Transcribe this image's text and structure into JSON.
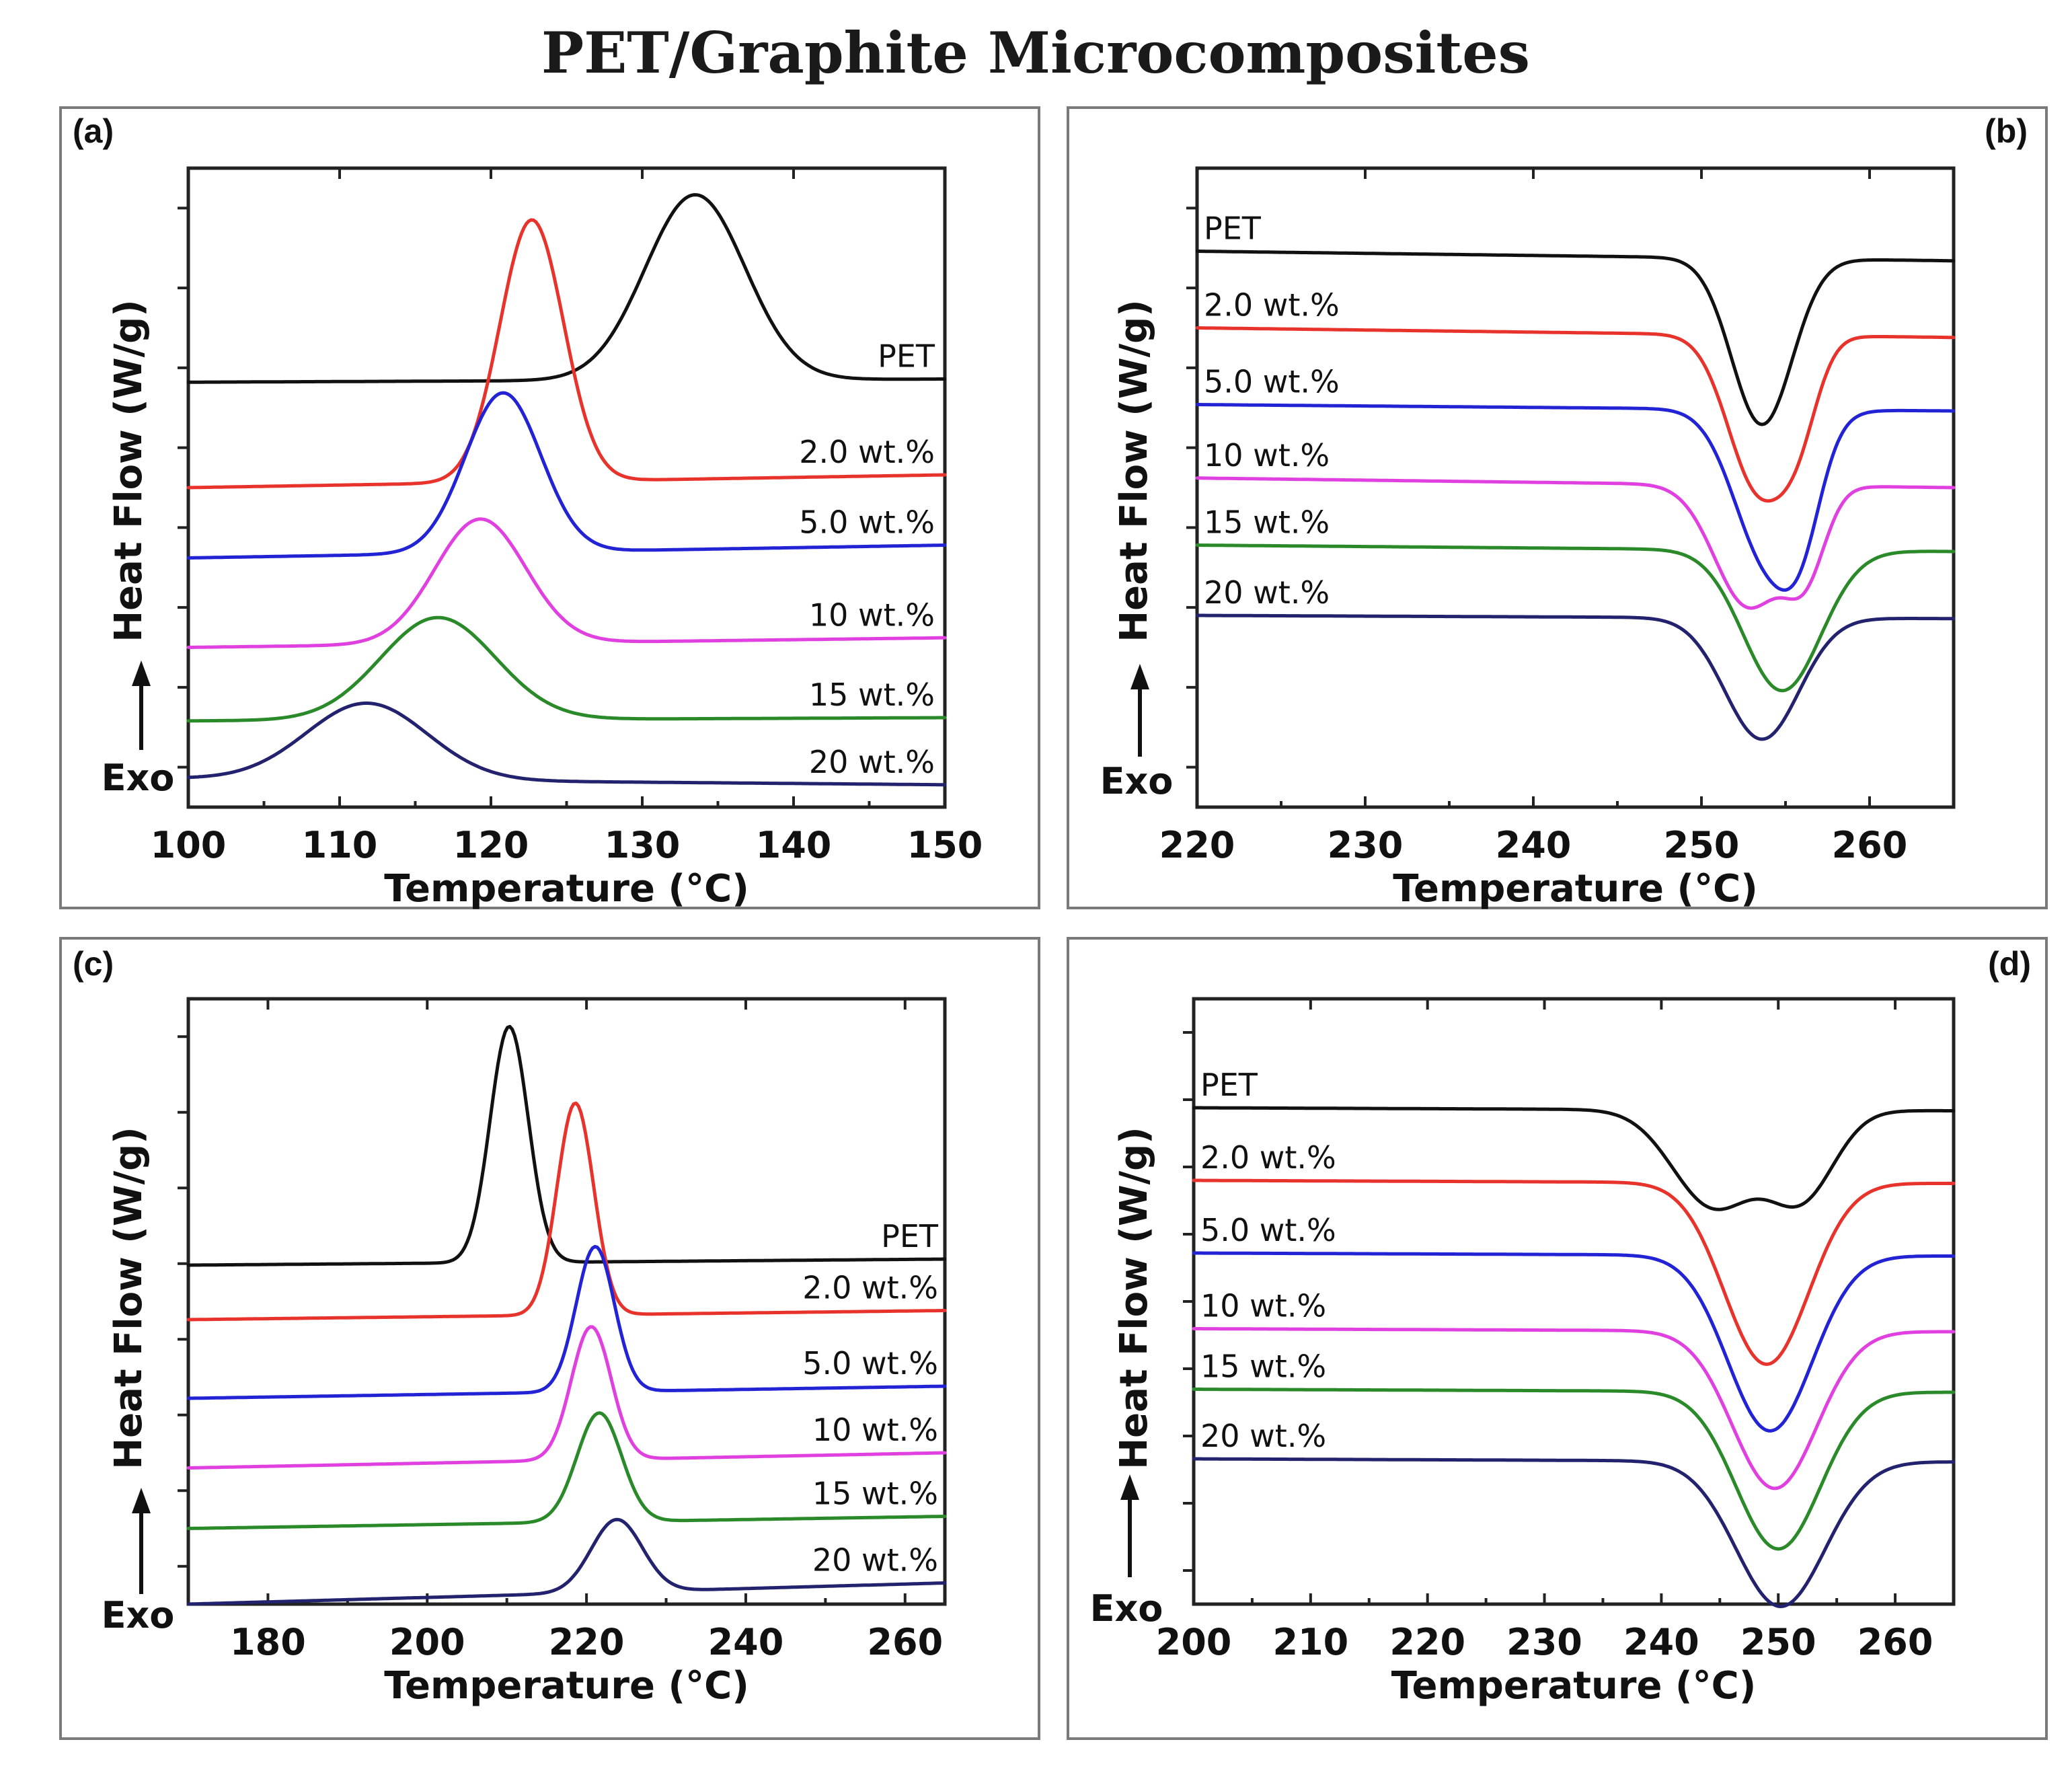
{
  "figure_title": "PET/Graphite Microcomposites",
  "colors": {
    "PET": "#111111",
    "2.0 wt.%": "#e8332c",
    "5.0 wt.%": "#2323d6",
    "10 wt.%": "#e040e0",
    "15 wt.%": "#2a8a2a",
    "20 wt.%": "#22226e"
  },
  "chart_data": [
    {
      "panel": "(a)",
      "type": "line",
      "xlabel": "Temperature (°C)",
      "ylabel": "Heat Flow (W/g)",
      "exo_label": "Exo",
      "xlim": [
        100,
        150
      ],
      "xticks": [
        100,
        110,
        120,
        130,
        140,
        150
      ],
      "ylim": [
        0,
        100
      ],
      "yticks_unlabeled": 8,
      "peak_direction": "up",
      "series": [
        {
          "name": "PET",
          "baseline_start": 66.5,
          "baseline_end": 67.0,
          "peaks": [
            {
              "center": 133.5,
              "height": 29,
              "width": 3.3
            }
          ]
        },
        {
          "name": "2.0 wt.%",
          "baseline_start": 50.0,
          "baseline_end": 52.0,
          "peaks": [
            {
              "center": 122.7,
              "height": 41,
              "width": 2.1
            }
          ]
        },
        {
          "name": "5.0 wt.%",
          "baseline_start": 39.0,
          "baseline_end": 41.0,
          "peaks": [
            {
              "center": 120.8,
              "height": 25,
              "width": 2.5
            }
          ]
        },
        {
          "name": "10 wt.%",
          "baseline_start": 25.0,
          "baseline_end": 26.5,
          "peaks": [
            {
              "center": 119.3,
              "height": 19.5,
              "width": 3.0
            }
          ]
        },
        {
          "name": "15 wt.%",
          "baseline_start": 13.5,
          "baseline_end": 14.0,
          "peaks": [
            {
              "center": 116.5,
              "height": 16,
              "width": 3.8
            }
          ]
        },
        {
          "name": "20 wt.%",
          "baseline_start": 4.5,
          "baseline_end": 3.5,
          "peaks": [
            {
              "center": 111.8,
              "height": 12,
              "width": 4.0
            }
          ]
        }
      ]
    },
    {
      "panel": "(b)",
      "type": "line",
      "xlabel": "Temperature (°C)",
      "ylabel": "Heat Flow (W/g)",
      "exo_label": "Exo",
      "xlim": [
        220,
        265
      ],
      "xticks": [
        220,
        230,
        240,
        250,
        260
      ],
      "ylim": [
        0,
        100
      ],
      "yticks_unlabeled": 8,
      "peak_direction": "down",
      "series": [
        {
          "name": "PET",
          "baseline_start": 87.0,
          "baseline_end": 85.5,
          "peaks": [
            {
              "center": 253.6,
              "height": 26,
              "width": 1.8
            }
          ]
        },
        {
          "name": "2.0 wt.%",
          "baseline_start": 75.0,
          "baseline_end": 73.5,
          "peaks": [
            {
              "center": 253.4,
              "height": 24,
              "width": 1.8
            },
            {
              "center": 255.8,
              "height": 10,
              "width": 1.2
            }
          ]
        },
        {
          "name": "5.0 wt.%",
          "baseline_start": 63.0,
          "baseline_end": 62.0,
          "peaks": [
            {
              "center": 254.0,
              "height": 24,
              "width": 2.0
            },
            {
              "center": 256.0,
              "height": 10,
              "width": 1.2
            }
          ]
        },
        {
          "name": "10 wt.%",
          "baseline_start": 51.5,
          "baseline_end": 50.0,
          "peaks": [
            {
              "center": 252.8,
              "height": 19,
              "width": 2.0
            },
            {
              "center": 256.2,
              "height": 12,
              "width": 1.2
            }
          ]
        },
        {
          "name": "15 wt.%",
          "baseline_start": 41.0,
          "baseline_end": 40.0,
          "peaks": [
            {
              "center": 254.8,
              "height": 22,
              "width": 2.3
            }
          ]
        },
        {
          "name": "20 wt.%",
          "baseline_start": 30.0,
          "baseline_end": 29.5,
          "peaks": [
            {
              "center": 253.6,
              "height": 19,
              "width": 2.2
            }
          ]
        }
      ]
    },
    {
      "panel": "(c)",
      "type": "line",
      "xlabel": "Temperature (°C)",
      "ylabel": "Heat Flow (W/g)",
      "exo_label": "Exo",
      "xlim": [
        170,
        265
      ],
      "xticks": [
        180,
        200,
        220,
        240,
        260
      ],
      "ylim": [
        0,
        100
      ],
      "yticks_unlabeled": 8,
      "peak_direction": "up",
      "series": [
        {
          "name": "PET",
          "baseline_start": 56.0,
          "baseline_end": 57.0,
          "peaks": [
            {
              "center": 210.3,
              "height": 39,
              "width": 2.4
            }
          ]
        },
        {
          "name": "2.0 wt.%",
          "baseline_start": 47.0,
          "baseline_end": 48.5,
          "peaks": [
            {
              "center": 218.6,
              "height": 35,
              "width": 2.3
            }
          ]
        },
        {
          "name": "5.0 wt.%",
          "baseline_start": 34.0,
          "baseline_end": 36.0,
          "peaks": [
            {
              "center": 221.1,
              "height": 24,
              "width": 2.4
            }
          ]
        },
        {
          "name": "10 wt.%",
          "baseline_start": 22.5,
          "baseline_end": 25.0,
          "peaks": [
            {
              "center": 220.6,
              "height": 22,
              "width": 2.5
            }
          ]
        },
        {
          "name": "15 wt.%",
          "baseline_start": 12.5,
          "baseline_end": 14.5,
          "peaks": [
            {
              "center": 221.6,
              "height": 18,
              "width": 2.8
            }
          ]
        },
        {
          "name": "20 wt.%",
          "baseline_start": 0.0,
          "baseline_end": 3.5,
          "peaks": [
            {
              "center": 223.8,
              "height": 12,
              "width": 3.2
            }
          ]
        }
      ]
    },
    {
      "panel": "(d)",
      "type": "line",
      "xlabel": "Temperature (°C)",
      "ylabel": "Heat Flow (W/g)",
      "exo_label": "Exo",
      "xlim": [
        200,
        265
      ],
      "xticks": [
        200,
        210,
        220,
        230,
        240,
        250,
        260
      ],
      "ylim": [
        0,
        100
      ],
      "yticks_unlabeled": 9,
      "peak_direction": "down",
      "series": [
        {
          "name": "PET",
          "baseline_start": 82.0,
          "baseline_end": 81.5,
          "peaks": [
            {
              "center": 244.5,
              "height": 16,
              "width": 3.5
            },
            {
              "center": 252.0,
              "height": 14,
              "width": 2.8
            }
          ]
        },
        {
          "name": "2.0 wt.%",
          "baseline_start": 70.0,
          "baseline_end": 69.5,
          "peaks": [
            {
              "center": 249.0,
              "height": 30,
              "width": 3.6
            }
          ]
        },
        {
          "name": "5.0 wt.%",
          "baseline_start": 58.0,
          "baseline_end": 57.5,
          "peaks": [
            {
              "center": 249.3,
              "height": 29,
              "width": 3.6
            }
          ]
        },
        {
          "name": "10 wt.%",
          "baseline_start": 45.5,
          "baseline_end": 45.0,
          "peaks": [
            {
              "center": 249.7,
              "height": 26,
              "width": 3.6
            }
          ]
        },
        {
          "name": "15 wt.%",
          "baseline_start": 35.5,
          "baseline_end": 35.0,
          "peaks": [
            {
              "center": 250.0,
              "height": 26,
              "width": 3.6
            }
          ]
        },
        {
          "name": "20 wt.%",
          "baseline_start": 24.0,
          "baseline_end": 23.5,
          "peaks": [
            {
              "center": 250.2,
              "height": 24,
              "width": 3.8
            }
          ]
        }
      ]
    }
  ]
}
